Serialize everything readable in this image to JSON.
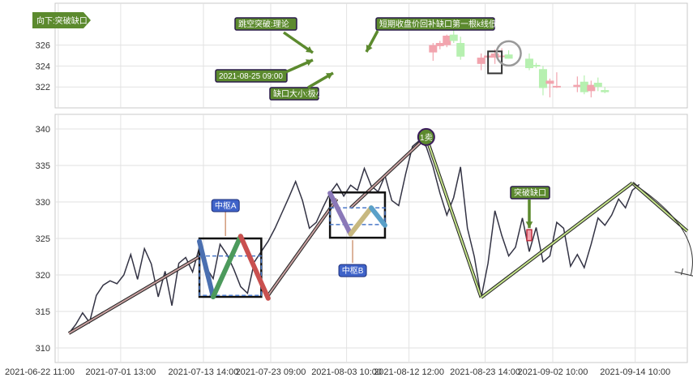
{
  "chart_data": [
    {
      "type": "candlestick",
      "panel": "top",
      "ylim": [
        320,
        330
      ],
      "y_ticks": [
        322,
        324,
        326
      ],
      "candles": [
        {
          "x": "2021-08-16",
          "open": 325.3,
          "high": 326.2,
          "low": 324.5,
          "close": 326.0
        },
        {
          "x": "2021-08-17",
          "open": 325.9,
          "high": 326.4,
          "low": 325.6,
          "close": 326.2
        },
        {
          "x": "2021-08-18",
          "open": 326.0,
          "high": 327.0,
          "low": 325.8,
          "close": 326.9
        },
        {
          "x": "2021-08-19",
          "open": 327.0,
          "high": 327.8,
          "low": 326.2,
          "close": 326.4
        },
        {
          "x": "2021-08-20",
          "open": 326.2,
          "high": 326.8,
          "low": 324.6,
          "close": 324.9
        },
        {
          "x": "2021-08-23",
          "open": 324.2,
          "high": 325.2,
          "low": 323.6,
          "close": 324.8
        },
        {
          "x": "2021-08-24",
          "open": 324.8,
          "high": 325.4,
          "low": 323.8,
          "close": 325.0
        },
        {
          "x": "2021-08-25",
          "open": 324.8,
          "high": 325.6,
          "low": 324.2,
          "close": 325.2
        },
        {
          "x": "2021-08-26",
          "open": 325.0,
          "high": 325.7,
          "low": 324.3,
          "close": 325.0
        },
        {
          "x": "2021-08-27",
          "open": 325.1,
          "high": 325.5,
          "low": 324.7,
          "close": 324.7
        },
        {
          "x": "2021-08-30",
          "open": 324.7,
          "high": 325.2,
          "low": 323.6,
          "close": 323.8
        },
        {
          "x": "2021-08-31",
          "open": 324.1,
          "high": 324.3,
          "low": 323.8,
          "close": 324.0
        },
        {
          "x": "2021-09-01",
          "open": 323.7,
          "high": 324.0,
          "low": 321.2,
          "close": 321.9
        },
        {
          "x": "2021-09-02",
          "open": 322.3,
          "high": 322.8,
          "low": 321.0,
          "close": 322.6
        },
        {
          "x": "2021-09-03",
          "open": 322.1,
          "high": 323.4,
          "low": 321.9,
          "close": 322.1
        },
        {
          "x": "2021-09-06",
          "open": 322.0,
          "high": 323.0,
          "low": 321.5,
          "close": 322.2
        },
        {
          "x": "2021-09-07",
          "open": 322.5,
          "high": 323.1,
          "low": 321.3,
          "close": 321.5
        },
        {
          "x": "2021-09-08",
          "open": 321.6,
          "high": 322.6,
          "low": 321.0,
          "close": 322.2
        },
        {
          "x": "2021-09-09",
          "open": 322.4,
          "high": 322.9,
          "low": 321.6,
          "close": 322.0
        },
        {
          "x": "2021-09-10",
          "open": 321.7,
          "high": 322.0,
          "low": 321.4,
          "close": 321.5
        }
      ],
      "gap_box": {
        "x_from": "2021-08-24",
        "x_to": "2021-08-26",
        "y_low": 323.3,
        "y_high": 325.4
      },
      "annotations": [
        {
          "text": "向下:突破缺口"
        },
        {
          "text": "跳空突破:理论"
        },
        {
          "text": "2021-08-25 09:00"
        },
        {
          "text": "缺口大小:极小"
        },
        {
          "text": "短期收盘价回补缺口第一根k线低点"
        }
      ]
    },
    {
      "type": "line",
      "panel": "bottom",
      "ylim": [
        308,
        342
      ],
      "y_ticks": [
        310,
        315,
        320,
        325,
        330,
        335,
        340
      ],
      "x_tick_labels": [
        "2021-06-22 11:00",
        "2021-07-01 13:00",
        "2021-07-13 14:00",
        "2021-07-23 09:00",
        "2021-08-03 10:00",
        "2021-08-12 12:00",
        "2021-08-23 14:00",
        "2021-09-02 10:00",
        "2021-09-14 10:00"
      ],
      "x_range": [
        "2021-06-22",
        "2021-09-22"
      ],
      "price": {
        "x": [
          "2021-06-24",
          "2021-06-25",
          "2021-06-26",
          "2021-06-27",
          "2021-06-28",
          "2021-06-29",
          "2021-06-30",
          "2021-07-01",
          "2021-07-02",
          "2021-07-03",
          "2021-07-04",
          "2021-07-05",
          "2021-07-06",
          "2021-07-07",
          "2021-07-08",
          "2021-07-09",
          "2021-07-10",
          "2021-07-11",
          "2021-07-12",
          "2021-07-13",
          "2021-07-14",
          "2021-07-15",
          "2021-07-16",
          "2021-07-17",
          "2021-07-18",
          "2021-07-19",
          "2021-07-20",
          "2021-07-21",
          "2021-07-22",
          "2021-07-23",
          "2021-07-24",
          "2021-07-25",
          "2021-07-26",
          "2021-07-27",
          "2021-07-28",
          "2021-07-29",
          "2021-07-30",
          "2021-07-31",
          "2021-08-01",
          "2021-08-02",
          "2021-08-03",
          "2021-08-04",
          "2021-08-05",
          "2021-08-06",
          "2021-08-07",
          "2021-08-08",
          "2021-08-09",
          "2021-08-10",
          "2021-08-11",
          "2021-08-12",
          "2021-08-13",
          "2021-08-14",
          "2021-08-15",
          "2021-08-16",
          "2021-08-17",
          "2021-08-18",
          "2021-08-19",
          "2021-08-20",
          "2021-08-21",
          "2021-08-22",
          "2021-08-23",
          "2021-08-24",
          "2021-08-25",
          "2021-08-26",
          "2021-08-27",
          "2021-08-28",
          "2021-08-29",
          "2021-08-30",
          "2021-08-31",
          "2021-09-01",
          "2021-09-02",
          "2021-09-03",
          "2021-09-04",
          "2021-09-05",
          "2021-09-06",
          "2021-09-07",
          "2021-09-08",
          "2021-09-09",
          "2021-09-10",
          "2021-09-11",
          "2021-09-12",
          "2021-09-13",
          "2021-09-14",
          "2021-09-15"
        ],
        "y": [
          312.0,
          313.2,
          314.8,
          313.5,
          317.2,
          318.6,
          319.2,
          318.8,
          320.0,
          322.8,
          319.4,
          323.6,
          321.5,
          317.0,
          320.5,
          315.8,
          321.6,
          322.4,
          320.4,
          323.8,
          321.0,
          319.5,
          324.2,
          322.8,
          320.8,
          318.4,
          317.5,
          321.8,
          323.2,
          324.6,
          326.4,
          328.5,
          330.6,
          332.8,
          330.2,
          326.4,
          327.2,
          329.3,
          331.2,
          332.5,
          330.8,
          332.3,
          331.6,
          334.6,
          332.2,
          331.4,
          333.6,
          330.2,
          329.5,
          333.8,
          337.6,
          338.4,
          337.6,
          334.8,
          331.2,
          328.2,
          330.6,
          334.8,
          326.4,
          322.5,
          316.9,
          321.6,
          328.8,
          325.4,
          322.6,
          323.8,
          327.8,
          323.2,
          326.5,
          321.8,
          322.6,
          327.2,
          326.4,
          321.2,
          322.8,
          321.0,
          324.2,
          327.8,
          326.8,
          328.2,
          330.4,
          329.2,
          331.6,
          332.4
        ]
      },
      "trend_lines": [
        {
          "from": [
            "2021-06-24",
            312.0
          ],
          "to": [
            "2021-07-13",
            322.5
          ]
        },
        {
          "from": [
            "2021-07-23",
            317.2
          ],
          "to": [
            "2021-08-02",
            330.4
          ]
        },
        {
          "from": [
            "2021-08-04",
            329.2
          ],
          "to": [
            "2021-08-15",
            338.9
          ]
        },
        {
          "from": [
            "2021-08-15",
            338.9
          ],
          "to": [
            "2021-08-23",
            316.9
          ]
        },
        {
          "from": [
            "2021-08-23",
            316.9
          ],
          "to": [
            "2021-09-14",
            332.6
          ]
        },
        {
          "from": [
            "2021-09-14",
            332.6
          ],
          "to": [
            "2021-09-22",
            326.0
          ]
        }
      ],
      "zigzag_legs": [
        {
          "color": "#4a6fb0",
          "from": [
            "2021-07-13",
            324.6
          ],
          "to": [
            "2021-07-15",
            317.0
          ]
        },
        {
          "color": "#4c9a5c",
          "from": [
            "2021-07-15",
            317.0
          ],
          "to": [
            "2021-07-19",
            325.3
          ]
        },
        {
          "color": "#c9504f",
          "from": [
            "2021-07-19",
            325.3
          ],
          "to": [
            "2021-07-23",
            316.8
          ]
        },
        {
          "color": "#8a78b8",
          "from": [
            "2021-08-01",
            331.2
          ],
          "to": [
            "2021-08-04",
            325.6
          ]
        },
        {
          "color": "#c7b880",
          "from": [
            "2021-08-04",
            325.6
          ],
          "to": [
            "2021-08-07",
            329.2
          ]
        },
        {
          "color": "#5aa0c8",
          "from": [
            "2021-08-07",
            329.2
          ],
          "to": [
            "2021-08-09",
            326.8
          ]
        }
      ],
      "pivot_zones": [
        {
          "label": "中枢A",
          "x_from": "2021-07-13",
          "x_to": "2021-07-22",
          "y_low": 317.0,
          "y_high": 325.0,
          "center_low": 317.2,
          "center_high": 322.6,
          "label_position": "above"
        },
        {
          "label": "中枢B",
          "x_from": "2021-08-01",
          "x_to": "2021-08-09",
          "y_low": 325.1,
          "y_high": 331.3,
          "center_low": 326.9,
          "center_high": 329.2,
          "label_position": "below"
        }
      ],
      "markers": [
        {
          "label": "1卖",
          "x": "2021-08-15",
          "y": 338.9
        },
        {
          "label": "突破缺口",
          "x": "2021-08-30",
          "y_low": 324.7,
          "y_high": 326.2
        }
      ],
      "projection_arc": {
        "from": [
          "2021-09-14",
          332.6
        ],
        "to": [
          "2021-09-23",
          320.0
        ]
      }
    }
  ]
}
